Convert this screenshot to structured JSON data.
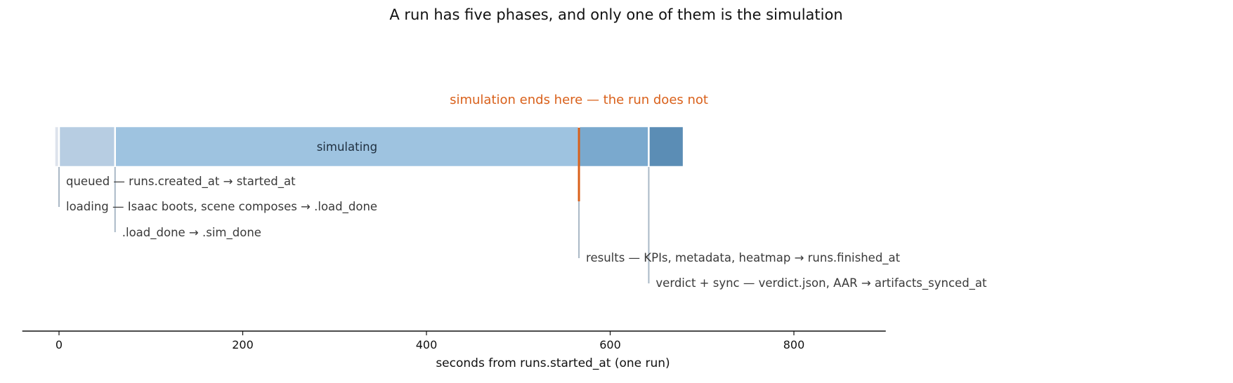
{
  "chart_data": {
    "type": "timeline",
    "title": "A run has five phases, and only one of them is the simulation",
    "xlabel": "seconds from runs.started_at  (one run)",
    "xlim": [
      -40,
      900
    ],
    "xticks": [
      0,
      200,
      400,
      600,
      800
    ],
    "segments": [
      {
        "name": "queued",
        "start": -5,
        "end": 0,
        "color": "#dde3ec",
        "label": "queued — runs.created_at → started_at",
        "inbar_label": ""
      },
      {
        "name": "loading",
        "start": 0,
        "end": 61,
        "color": "#b7cde2",
        "label": "loading — Isaac boots, scene composes → .load_done",
        "inbar_label": ""
      },
      {
        "name": "simulating",
        "start": 61,
        "end": 566,
        "color": "#9ec3e0",
        "label": ".load_done → .sim_done",
        "inbar_label": "simulating"
      },
      {
        "name": "results",
        "start": 566,
        "end": 642,
        "color": "#7aa9ce",
        "label": "results — KPIs, metadata, heatmap → runs.finished_at",
        "inbar_label": ""
      },
      {
        "name": "verdict",
        "start": 642,
        "end": 680,
        "color": "#5b8db5",
        "label": "verdict + sync — verdict.json, AAR → artifacts_synced_at",
        "inbar_label": ""
      }
    ],
    "marker": {
      "x": 566,
      "color": "#d9601a",
      "text": "simulation ends here — the run does not"
    },
    "leader_color": "#aab8c6",
    "grid": false
  }
}
